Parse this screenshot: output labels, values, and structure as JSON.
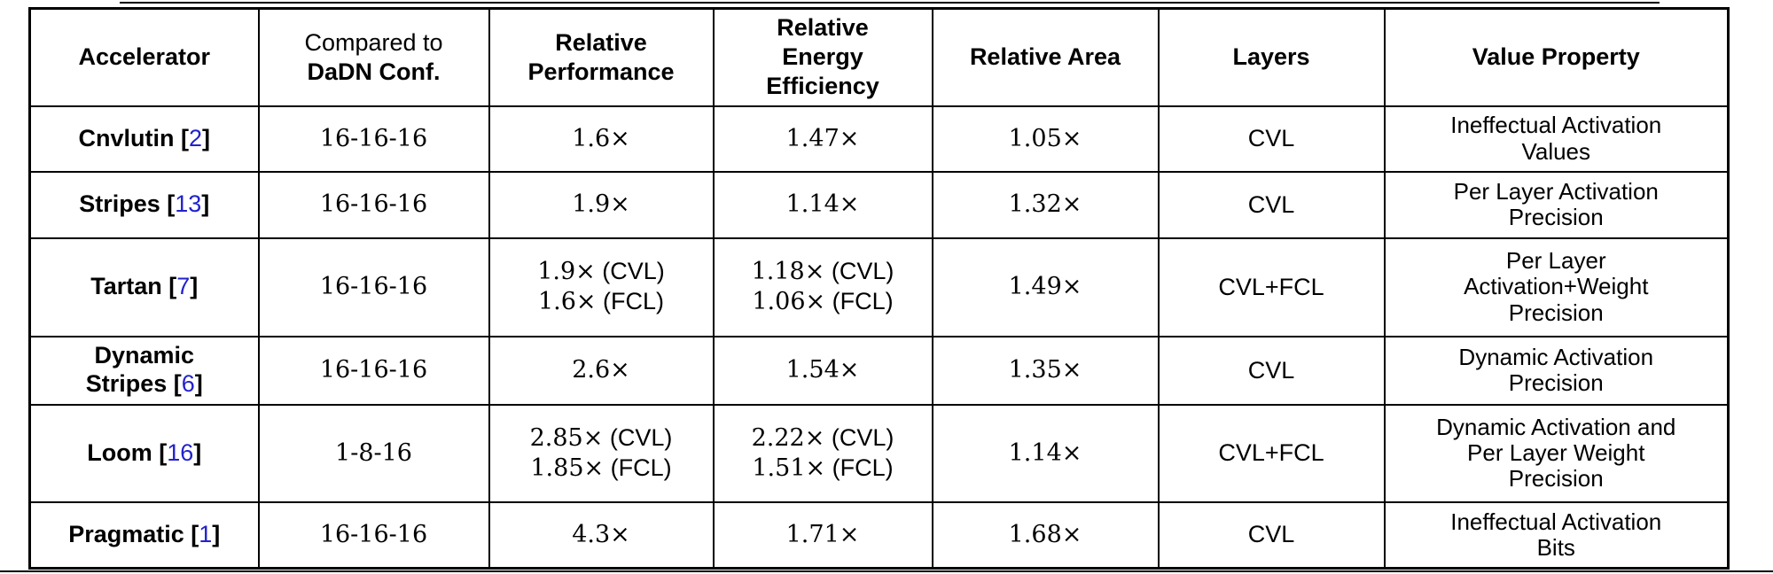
{
  "colors": {
    "background": "#ffffff",
    "border": "#000000",
    "text": "#000000",
    "citation_blue": "#2222cc"
  },
  "table": {
    "columns": [
      {
        "id": "accelerator",
        "header_lines": [
          {
            "text": "Accelerator",
            "bold": true
          }
        ]
      },
      {
        "id": "dadn-config",
        "header_lines": [
          {
            "text": "Compared to",
            "bold": false
          },
          {
            "text": "DaDN Conf.",
            "bold": true
          }
        ]
      },
      {
        "id": "relative-performance",
        "header_lines": [
          {
            "text": "Relative",
            "bold": true
          },
          {
            "text": "Performance",
            "bold": true
          }
        ]
      },
      {
        "id": "relative-energy-efficiency",
        "header_lines": [
          {
            "text": "Relative",
            "bold": true
          },
          {
            "text": "Energy",
            "bold": true
          },
          {
            "text": "Efficiency",
            "bold": true
          }
        ]
      },
      {
        "id": "relative-area",
        "header_lines": [
          {
            "text": "Relative Area",
            "bold": true
          }
        ]
      },
      {
        "id": "layers",
        "header_lines": [
          {
            "text": "Layers",
            "bold": true
          }
        ]
      },
      {
        "id": "value-property",
        "header_lines": [
          {
            "text": "Value Property",
            "bold": true
          }
        ]
      }
    ],
    "rows": [
      {
        "accelerator": {
          "name_lines": [
            "Cnvlutin"
          ],
          "cite": "2"
        },
        "dadn_config": "16-16-16",
        "relative_performance": [
          {
            "value": "1.6×"
          }
        ],
        "relative_energy_efficiency": [
          {
            "value": "1.47×"
          }
        ],
        "relative_area": "1.05×",
        "layers": "CVL",
        "value_property_lines": [
          "Ineffectual Activation",
          "Values"
        ]
      },
      {
        "accelerator": {
          "name_lines": [
            "Stripes"
          ],
          "cite": "13"
        },
        "dadn_config": "16-16-16",
        "relative_performance": [
          {
            "value": "1.9×"
          }
        ],
        "relative_energy_efficiency": [
          {
            "value": "1.14×"
          }
        ],
        "relative_area": "1.32×",
        "layers": "CVL",
        "value_property_lines": [
          "Per Layer Activation",
          "Precision"
        ]
      },
      {
        "accelerator": {
          "name_lines": [
            "Tartan"
          ],
          "cite": "7"
        },
        "dadn_config": "16-16-16",
        "relative_performance": [
          {
            "value": "1.9×",
            "scope": "(CVL)"
          },
          {
            "value": "1.6×",
            "scope": "(FCL)"
          }
        ],
        "relative_energy_efficiency": [
          {
            "value": "1.18×",
            "scope": "(CVL)"
          },
          {
            "value": "1.06×",
            "scope": "(FCL)"
          }
        ],
        "relative_area": "1.49×",
        "layers": "CVL+FCL",
        "value_property_lines": [
          "Per Layer",
          "Activation+Weight",
          "Precision"
        ]
      },
      {
        "accelerator": {
          "name_lines": [
            "Dynamic",
            "Stripes"
          ],
          "cite": "6"
        },
        "dadn_config": "16-16-16",
        "relative_performance": [
          {
            "value": "2.6×"
          }
        ],
        "relative_energy_efficiency": [
          {
            "value": "1.54×"
          }
        ],
        "relative_area": "1.35×",
        "layers": "CVL",
        "value_property_lines": [
          "Dynamic Activation",
          "Precision"
        ]
      },
      {
        "accelerator": {
          "name_lines": [
            "Loom"
          ],
          "cite": "16"
        },
        "dadn_config": "1-8-16",
        "relative_performance": [
          {
            "value": "2.85×",
            "scope": "(CVL)"
          },
          {
            "value": "1.85×",
            "scope": "(FCL)"
          }
        ],
        "relative_energy_efficiency": [
          {
            "value": "2.22×",
            "scope": "(CVL)"
          },
          {
            "value": "1.51×",
            "scope": "(FCL)"
          }
        ],
        "relative_area": "1.14×",
        "layers": "CVL+FCL",
        "value_property_lines": [
          "Dynamic Activation and",
          "Per Layer Weight",
          "Precision"
        ]
      },
      {
        "accelerator": {
          "name_lines": [
            "Pragmatic"
          ],
          "cite": "1"
        },
        "dadn_config": "16-16-16",
        "relative_performance": [
          {
            "value": "4.3×"
          }
        ],
        "relative_energy_efficiency": [
          {
            "value": "1.71×"
          }
        ],
        "relative_area": "1.68×",
        "layers": "CVL",
        "value_property_lines": [
          "Ineffectual Activation",
          "Bits"
        ]
      }
    ]
  }
}
